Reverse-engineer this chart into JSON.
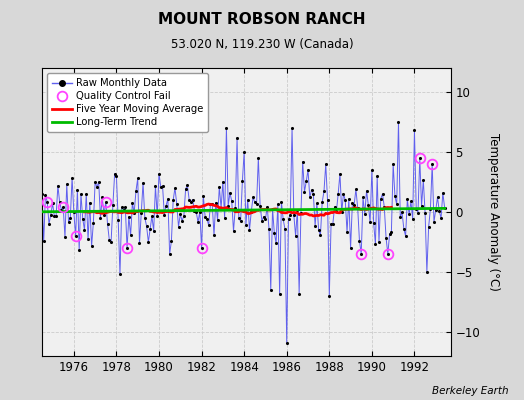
{
  "title": "MOUNT ROBSON RANCH",
  "subtitle": "53.020 N, 119.230 W (Canada)",
  "ylabel": "Temperature Anomaly (°C)",
  "credit": "Berkeley Earth",
  "fig_bg_color": "#d8d8d8",
  "plot_bg_color": "#f0f0f0",
  "ylim": [
    -12,
    12
  ],
  "xlim": [
    1974.5,
    1993.7
  ],
  "yticks": [
    -10,
    -5,
    0,
    5,
    10
  ],
  "xticks": [
    1976,
    1978,
    1980,
    1982,
    1984,
    1986,
    1988,
    1990,
    1992
  ],
  "line_color": "#6060ee",
  "dot_color": "#000000",
  "qc_color": "#ff44ff",
  "ma_color": "#ff0000",
  "trend_color": "#00bb00",
  "grid_color": "#cccccc"
}
